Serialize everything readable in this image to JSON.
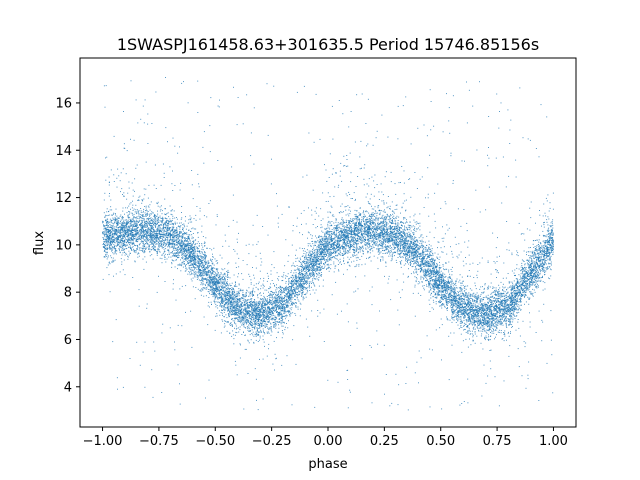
{
  "chart_data": {
    "type": "scatter",
    "title": "1SWASPJ161458.63+301635.5 Period 15746.85156s",
    "xlabel": "phase",
    "ylabel": "flux",
    "xlim": [
      -1.1,
      1.1
    ],
    "ylim": [
      2.3,
      17.9
    ],
    "x_ticks": [
      -1.0,
      -0.75,
      -0.5,
      -0.25,
      0.0,
      0.25,
      0.5,
      0.75,
      1.0
    ],
    "x_tick_labels": [
      "−1.00",
      "−0.75",
      "−0.50",
      "−0.25",
      "0.00",
      "0.25",
      "0.50",
      "0.75",
      "1.00"
    ],
    "y_ticks": [
      4,
      6,
      8,
      10,
      12,
      14,
      16
    ],
    "y_tick_labels": [
      "4",
      "6",
      "8",
      "10",
      "12",
      "14",
      "16"
    ],
    "grid": false,
    "legend": null,
    "point_color": "#1f77b4",
    "series": [
      {
        "phase_range": [
          -1.0,
          1.0
        ],
        "approx_points": 14000,
        "profile": {
          "phase": [
            -1.0,
            -0.9,
            -0.8,
            -0.7,
            -0.6,
            -0.5,
            -0.4,
            -0.3,
            -0.2,
            -0.1,
            0.0,
            0.1,
            0.2,
            0.3,
            0.4,
            0.5,
            0.6,
            0.7,
            0.8,
            0.9,
            1.0
          ],
          "flux": [
            10.3,
            10.5,
            10.6,
            10.4,
            9.6,
            8.3,
            7.3,
            7.0,
            7.5,
            8.8,
            10.0,
            10.4,
            10.6,
            10.4,
            9.6,
            8.3,
            7.3,
            7.0,
            7.4,
            8.8,
            10.2
          ]
        },
        "scatter_sigma": 0.45,
        "outlier_range": [
          3.0,
          17.2
        ]
      }
    ]
  }
}
